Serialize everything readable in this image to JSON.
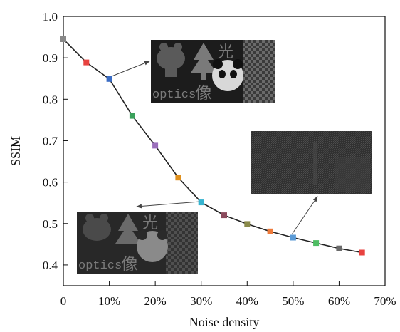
{
  "chart_data": {
    "type": "line",
    "title": "",
    "xlabel": "Noise density",
    "ylabel": "SSIM",
    "xlim": [
      0,
      70
    ],
    "ylim": [
      0.35,
      1.0
    ],
    "x_ticks": [
      "0",
      "10%",
      "20%",
      "30%",
      "40%",
      "50%",
      "60%",
      "70%"
    ],
    "y_ticks": [
      "0.4",
      "0.5",
      "0.6",
      "0.7",
      "0.8",
      "0.9",
      "1.0"
    ],
    "grid": false,
    "legend": "none",
    "series": [
      {
        "x": [
          0,
          5,
          10,
          15,
          20,
          25,
          30,
          35,
          40,
          45,
          50,
          55,
          60,
          65
        ],
        "y": [
          0.945,
          0.889,
          0.849,
          0.76,
          0.688,
          0.611,
          0.551,
          0.52,
          0.499,
          0.481,
          0.466,
          0.453,
          0.44,
          0.43
        ],
        "line_color": "#222222",
        "marker_colors": [
          "#888888",
          "#e8423f",
          "#3a6cc4",
          "#3aa15b",
          "#9a6fbb",
          "#e0901d",
          "#35b3cf",
          "#8a4a5c",
          "#8a8a4a",
          "#ee7a3a",
          "#5a9ad6",
          "#4ebd63",
          "#6a6a6a",
          "#e8423f"
        ]
      }
    ],
    "annotations": [
      {
        "text_latin": "optics",
        "text_cjk": "像",
        "text_top": "光",
        "points_to_x": 10
      },
      {
        "text_latin": "optics",
        "text_cjk": "像",
        "text_top": "光",
        "points_to_x": 30
      },
      {
        "points_to_x": 50
      }
    ]
  }
}
